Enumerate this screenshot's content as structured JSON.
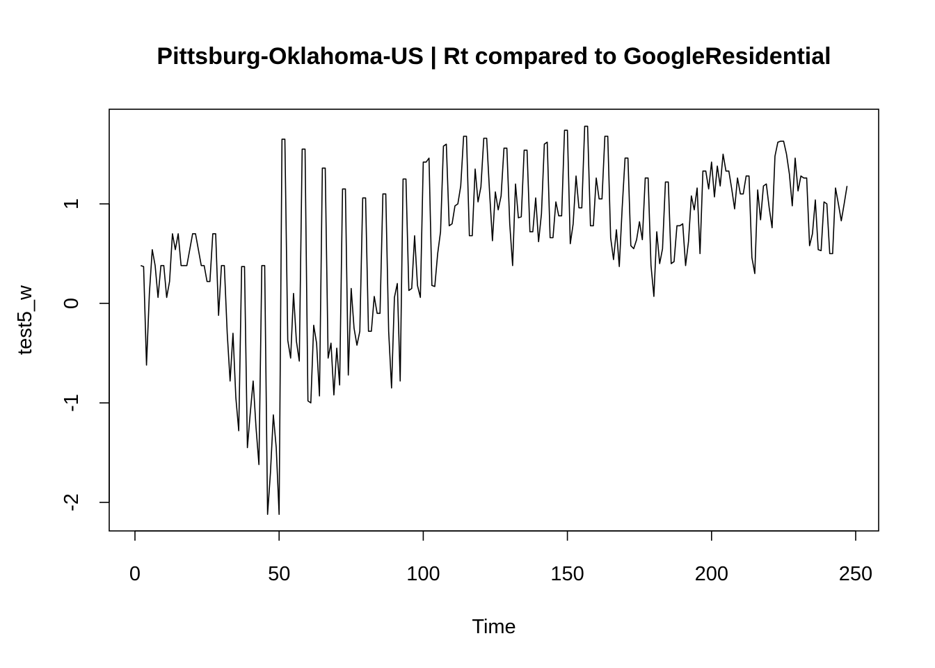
{
  "chart_data": {
    "type": "line",
    "title": "Pittsburg-Oklahoma-US | Rt compared to GoogleResidential",
    "xlabel": "Time",
    "ylabel": "test5_w",
    "xlim": [
      0,
      250
    ],
    "ylim": [
      -2,
      1.7
    ],
    "x_ticks": [
      0,
      50,
      100,
      150,
      200,
      250
    ],
    "y_ticks": [
      -2,
      -1,
      0,
      1
    ],
    "x_tick_labels": [
      "0",
      "50",
      "100",
      "150",
      "200",
      "250"
    ],
    "y_tick_labels": [
      "-2",
      "-1",
      "0",
      "1"
    ],
    "grid": false,
    "legend": "none",
    "x_start": 2,
    "values": [
      0.38,
      0.37,
      -0.62,
      0.1,
      0.54,
      0.38,
      0.06,
      0.38,
      0.38,
      0.06,
      0.22,
      0.7,
      0.54,
      0.7,
      0.38,
      0.38,
      0.38,
      0.54,
      0.7,
      0.7,
      0.54,
      0.38,
      0.38,
      0.22,
      0.22,
      0.7,
      0.7,
      -0.12,
      0.38,
      0.38,
      -0.3,
      -0.78,
      -0.3,
      -0.95,
      -1.28,
      0.37,
      0.37,
      -1.45,
      -1.1,
      -0.78,
      -1.25,
      -1.62,
      0.38,
      0.38,
      -2.12,
      -1.7,
      -1.12,
      -1.45,
      -2.12,
      1.65,
      1.65,
      -0.37,
      -0.55,
      0.1,
      -0.38,
      -0.58,
      1.55,
      1.55,
      -0.98,
      -1.0,
      -0.22,
      -0.4,
      -0.93,
      1.36,
      1.36,
      -0.55,
      -0.4,
      -0.92,
      -0.45,
      -0.82,
      1.15,
      1.15,
      -0.72,
      0.15,
      -0.25,
      -0.42,
      -0.28,
      1.06,
      1.06,
      -0.28,
      -0.28,
      0.07,
      -0.1,
      -0.1,
      1.1,
      1.1,
      -0.28,
      -0.85,
      0.06,
      0.2,
      -0.78,
      1.25,
      1.25,
      0.13,
      0.15,
      0.68,
      0.18,
      0.06,
      1.42,
      1.42,
      1.46,
      0.18,
      0.17,
      0.5,
      0.72,
      1.58,
      1.6,
      0.78,
      0.8,
      0.98,
      1.0,
      1.18,
      1.68,
      1.68,
      0.68,
      0.68,
      1.35,
      1.02,
      1.17,
      1.66,
      1.66,
      1.12,
      0.63,
      1.12,
      0.94,
      1.08,
      1.56,
      1.56,
      0.8,
      0.38,
      1.2,
      0.86,
      0.87,
      1.54,
      1.54,
      0.72,
      0.72,
      1.06,
      0.62,
      0.9,
      1.6,
      1.62,
      0.66,
      0.66,
      1.02,
      0.88,
      0.88,
      1.74,
      1.74,
      0.6,
      0.8,
      1.28,
      0.96,
      0.96,
      1.78,
      1.78,
      0.78,
      0.78,
      1.26,
      1.05,
      1.05,
      1.68,
      1.68,
      0.66,
      0.44,
      0.74,
      0.37,
      0.96,
      1.46,
      1.46,
      0.58,
      0.55,
      0.64,
      0.82,
      0.64,
      1.26,
      1.26,
      0.38,
      0.07,
      0.72,
      0.4,
      0.55,
      1.22,
      1.22,
      0.4,
      0.42,
      0.78,
      0.78,
      0.8,
      0.38,
      0.62,
      1.08,
      0.94,
      1.16,
      0.5,
      1.33,
      1.33,
      1.15,
      1.42,
      1.07,
      1.38,
      1.18,
      1.5,
      1.33,
      1.33,
      1.15,
      0.95,
      1.26,
      1.1,
      1.1,
      1.28,
      1.28,
      0.46,
      0.3,
      1.14,
      0.84,
      1.18,
      1.2,
      0.96,
      0.76,
      1.48,
      1.62,
      1.63,
      1.63,
      1.5,
      1.3,
      0.98,
      1.46,
      1.13,
      1.28,
      1.26,
      1.26,
      0.58,
      0.7,
      1.04,
      0.54,
      0.53,
      1.02,
      1.0,
      0.5,
      0.5,
      1.16,
      1.0,
      0.83,
      1.0,
      1.18
    ]
  }
}
